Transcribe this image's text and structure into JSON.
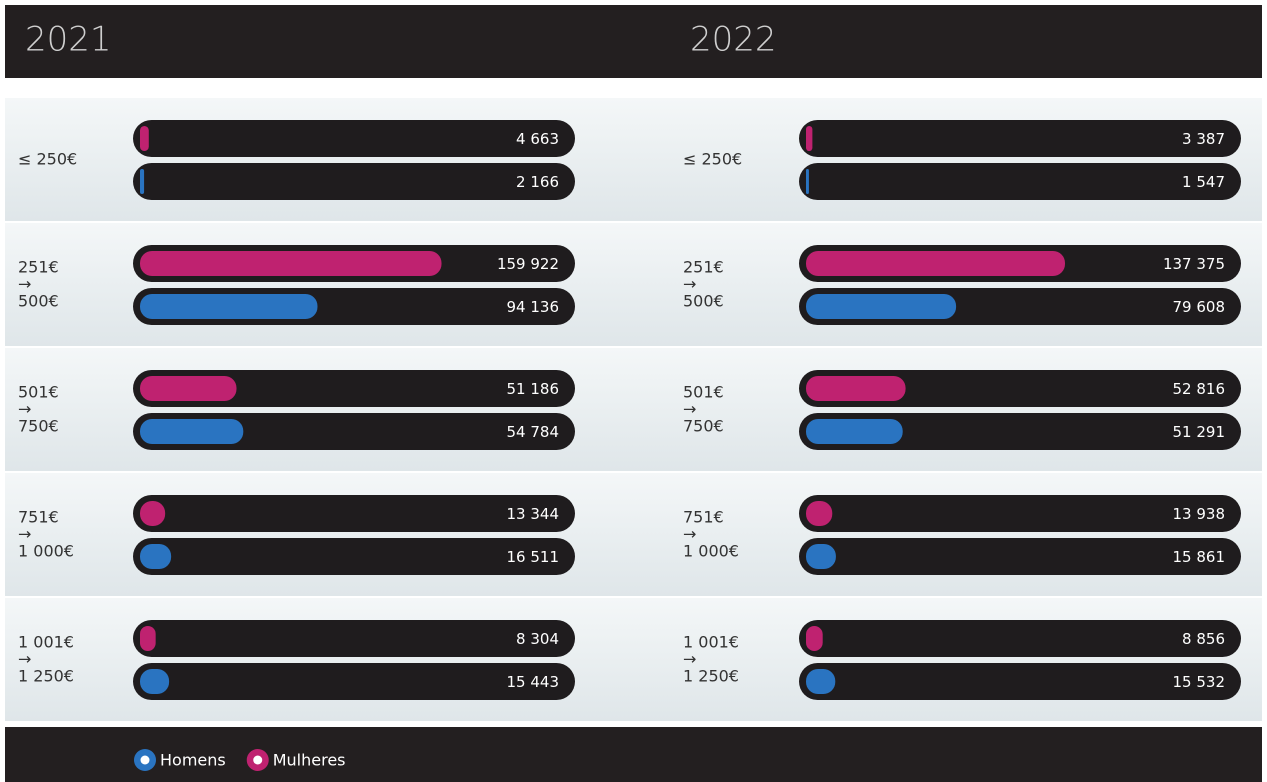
{
  "chart_data": [
    {
      "type": "bar",
      "title": "2021",
      "orientation": "horizontal",
      "xlim": [
        0,
        227000
      ],
      "categories": [
        "≤ 250€",
        "251€\n→\n500€",
        "501€\n→\n750€",
        "751€\n→\n1 000€",
        "1 001€\n→\n1 250€"
      ],
      "series": [
        {
          "name": "Mulheres",
          "color": "#bf2270",
          "values": [
            4663,
            159922,
            51186,
            13344,
            8304
          ],
          "value_labels": [
            "4 663",
            "159 922",
            "51 186",
            "13 344",
            "8 304"
          ]
        },
        {
          "name": "Homens",
          "color": "#2a74c1",
          "values": [
            2166,
            94136,
            54784,
            16511,
            15443
          ],
          "value_labels": [
            "2 166",
            "94 136",
            "54 784",
            "16 511",
            "15 443"
          ]
        }
      ]
    },
    {
      "type": "bar",
      "title": "2022",
      "orientation": "horizontal",
      "xlim": [
        0,
        227000
      ],
      "categories": [
        "≤ 250€",
        "251€\n→\n500€",
        "501€\n→\n750€",
        "751€\n→\n1 000€",
        "1 001€\n→\n1 250€"
      ],
      "series": [
        {
          "name": "Mulheres",
          "color": "#bf2270",
          "values": [
            3387,
            137375,
            52816,
            13938,
            8856
          ],
          "value_labels": [
            "3 387",
            "137 375",
            "52 816",
            "13 938",
            "8 856"
          ]
        },
        {
          "name": "Homens",
          "color": "#2a74c1",
          "values": [
            1547,
            79608,
            51291,
            15861,
            15532
          ],
          "value_labels": [
            "1 547",
            "79 608",
            "51 291",
            "15 861",
            "15 532"
          ]
        }
      ]
    }
  ]
}
